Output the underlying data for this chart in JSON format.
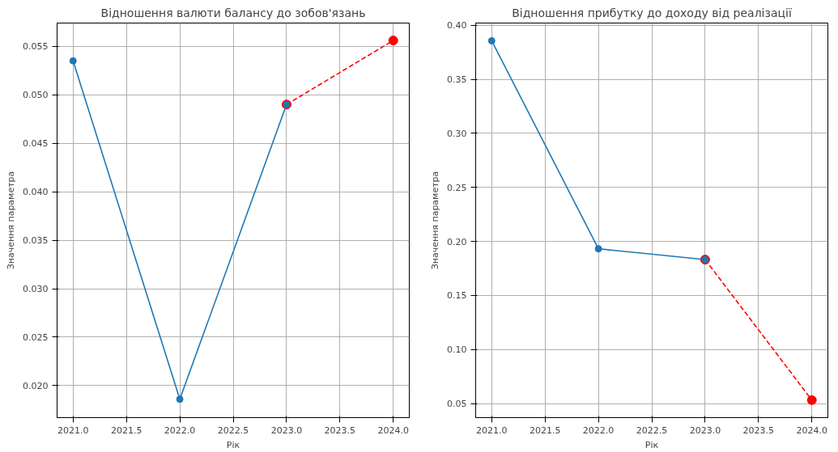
{
  "chart_data": [
    {
      "type": "line",
      "title": "Відношення валюти балансу до зобов'язань",
      "xlabel": "Рік",
      "ylabel": "Значення параметра",
      "series": [
        {
          "color": "#ff0000",
          "x": [
            2023,
            2024
          ],
          "values": [
            0.049,
            0.0556
          ],
          "line_style": "dashed",
          "marker": "circle"
        },
        {
          "color": "#1f77b4",
          "x": [
            2021,
            2022,
            2023
          ],
          "values": [
            0.0535,
            0.0186,
            0.049
          ],
          "line_style": "solid",
          "marker": "circle"
        }
      ],
      "xlim": [
        2020.85,
        2024.15
      ],
      "xticks": [
        {
          "value": 2021,
          "label": "2021.0"
        },
        2021.5,
        {
          "value": 2022,
          "label": "2022.0"
        },
        2022.5,
        {
          "value": 2023,
          "label": "2023.0"
        },
        2023.5,
        {
          "value": 2024,
          "label": "2024.0"
        }
      ],
      "ylim": [
        0.0167,
        0.0574
      ],
      "yticks": [
        {
          "value": 0.02,
          "label": "0.020"
        },
        0.025,
        {
          "value": 0.03,
          "label": "0.030"
        },
        0.035,
        {
          "value": 0.04,
          "label": "0.040"
        },
        0.045,
        {
          "value": 0.05,
          "label": "0.050"
        },
        0.055
      ],
      "grid": true
    },
    {
      "type": "line",
      "title": "Відношення прибутку до доходу від реалізації",
      "xlabel": "Рік",
      "ylabel": "Значення параметра",
      "series": [
        {
          "color": "#ff0000",
          "x": [
            2023,
            2024
          ],
          "values": [
            0.1832,
            0.0532
          ],
          "line_style": "dashed",
          "marker": "circle"
        },
        {
          "color": "#1f77b4",
          "x": [
            2021,
            2022,
            2023
          ],
          "values": [
            0.3856,
            0.1932,
            0.1832
          ],
          "line_style": "solid",
          "marker": "circle"
        }
      ],
      "xlim": [
        2020.85,
        2024.15
      ],
      "xticks": [
        {
          "value": 2021,
          "label": "2021.0"
        },
        2021.5,
        {
          "value": 2022,
          "label": "2022.0"
        },
        2022.5,
        {
          "value": 2023,
          "label": "2023.0"
        },
        2023.5,
        {
          "value": 2024,
          "label": "2024.0"
        }
      ],
      "ylim": [
        0.037,
        0.402
      ],
      "yticks": [
        0.05,
        {
          "value": 0.1,
          "label": "0.10"
        },
        0.15,
        {
          "value": 0.2,
          "label": "0.20"
        },
        0.25,
        {
          "value": 0.3,
          "label": "0.30"
        },
        0.35,
        {
          "value": 0.4,
          "label": "0.40"
        }
      ],
      "grid": true
    }
  ]
}
